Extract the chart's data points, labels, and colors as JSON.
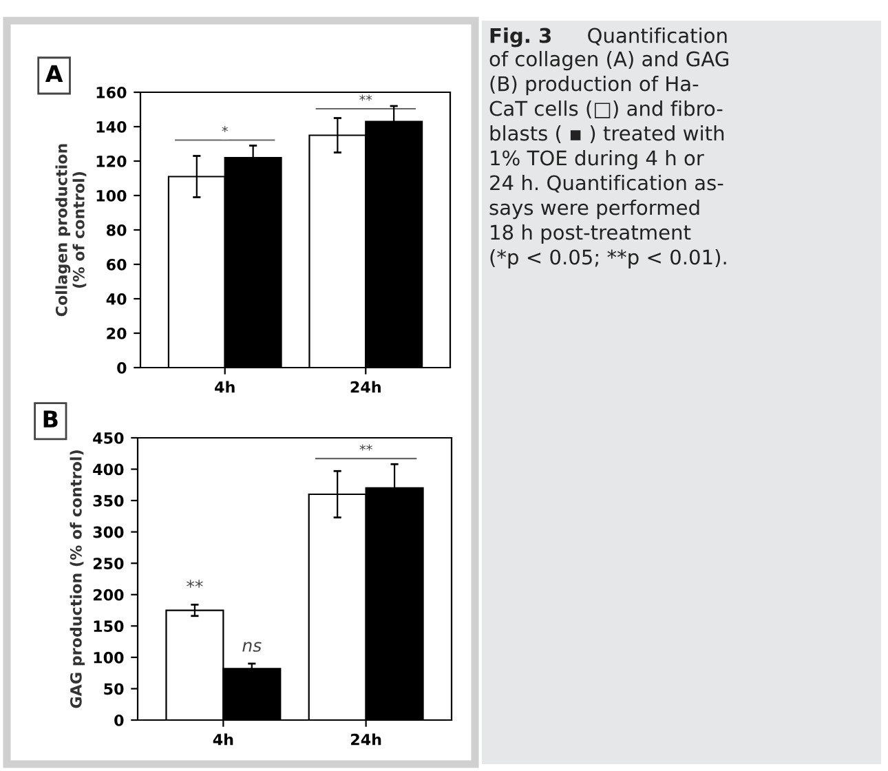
{
  "chart_data": [
    {
      "type": "bar",
      "title": "A",
      "ylabel": "Collagen production\n(% of control)",
      "categories": [
        "4h",
        "24h"
      ],
      "ylim": [
        0,
        160
      ],
      "yticks": [
        0,
        20,
        40,
        60,
        80,
        100,
        120,
        140,
        160
      ],
      "grid": false,
      "series": [
        {
          "color": "#ffffff",
          "values": [
            111,
            135
          ],
          "errors": [
            12,
            10
          ]
        },
        {
          "color": "#000000",
          "values": [
            122,
            143
          ],
          "errors": [
            7,
            9
          ]
        }
      ],
      "annotations": [
        "*",
        "**"
      ]
    },
    {
      "type": "bar",
      "title": "B",
      "ylabel": "GAG production (% of control)",
      "categories": [
        "4h",
        "24h"
      ],
      "ylim": [
        0,
        450
      ],
      "yticks": [
        0,
        50,
        100,
        150,
        200,
        250,
        300,
        350,
        400,
        450
      ],
      "grid": false,
      "series": [
        {
          "color": "#ffffff",
          "values": [
            175,
            360
          ],
          "errors": [
            9,
            37
          ],
          "value_labels": [
            "**",
            null
          ]
        },
        {
          "color": "#000000",
          "values": [
            82,
            370
          ],
          "errors": [
            8,
            38
          ],
          "value_labels": [
            "ns",
            null
          ]
        }
      ],
      "annotations": [
        "**"
      ]
    },
    {
      "type": "other",
      "title": "Fig. 3",
      "annotations": [
        "Quantification\nof collagen (A) and GAG\n(B) production of Ha-\nCaT cells (□) and fibro-\nblasts ( ▪ ) treated with\n1% TOE during 4 h or\n24 h. Quantification as-\nsays were performed\n18 h post-treatment\n(*p < 0.05; **p < 0.01)."
      ]
    }
  ]
}
